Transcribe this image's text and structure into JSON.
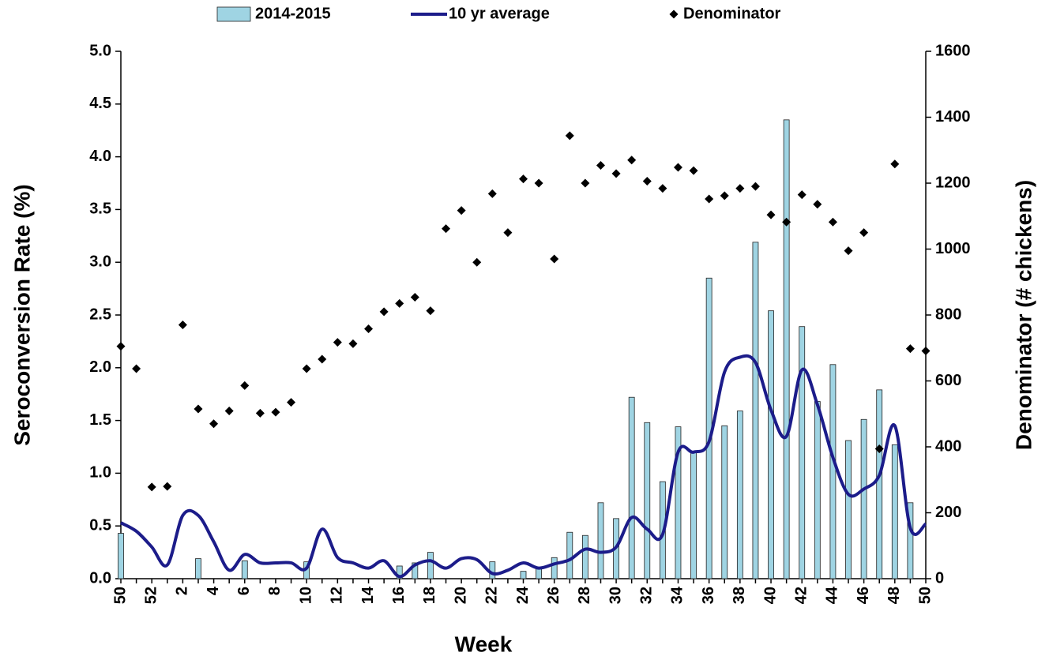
{
  "chart_data": {
    "type": "bar-line-scatter",
    "x_label": "Week",
    "y_label": "Seroconversion Rate (%)",
    "y2_label": "Denominator (# chickens)",
    "categories": [
      "50",
      null,
      "52",
      null,
      "2",
      null,
      "4",
      null,
      "6",
      null,
      "8",
      null,
      "10",
      null,
      "12",
      null,
      "14",
      null,
      "16",
      null,
      "18",
      null,
      "20",
      null,
      "22",
      null,
      "24",
      null,
      "26",
      null,
      "28",
      null,
      "30",
      null,
      "32",
      null,
      "34",
      null,
      "36",
      null,
      "38",
      null,
      "40",
      null,
      "42",
      null,
      "44",
      null,
      "46",
      null,
      "48",
      null,
      "50"
    ],
    "series": [
      {
        "name": "2014-2015",
        "kind": "bar",
        "color": "#9fd4e3",
        "values": [
          0.43,
          0,
          0,
          0,
          0,
          0.19,
          0,
          0,
          0.17,
          0,
          0,
          0,
          0.16,
          0,
          0,
          0,
          0,
          0,
          0.12,
          0.15,
          0.25,
          0,
          0,
          0,
          0.16,
          0,
          0.07,
          0.1,
          0.2,
          0.44,
          0.41,
          0.72,
          0.57,
          1.72,
          1.48,
          0.92,
          1.44,
          1.2,
          2.85,
          1.45,
          1.59,
          3.19,
          2.54,
          4.35,
          2.39,
          1.68,
          2.03,
          1.31,
          1.51,
          1.79,
          1.27,
          0.72,
          0
        ]
      },
      {
        "name": "10 yr average",
        "kind": "line",
        "color": "#1c1c8a",
        "values": [
          0.53,
          0.45,
          0.3,
          0.13,
          0.6,
          0.6,
          0.35,
          0.08,
          0.23,
          0.15,
          0.15,
          0.15,
          0.1,
          0.47,
          0.2,
          0.15,
          0.1,
          0.17,
          0.02,
          0.13,
          0.17,
          0.1,
          0.19,
          0.18,
          0.05,
          0.08,
          0.15,
          0.1,
          0.14,
          0.18,
          0.28,
          0.25,
          0.3,
          0.58,
          0.47,
          0.42,
          1.2,
          1.2,
          1.3,
          1.96,
          2.1,
          2.05,
          1.6,
          1.35,
          1.98,
          1.65,
          1.15,
          0.8,
          0.85,
          0.98,
          1.45,
          0.48,
          0.52
        ]
      },
      {
        "name": "Denominator",
        "kind": "scatter",
        "axis": "y2",
        "color": "#000000",
        "values": [
          705,
          637,
          278,
          280,
          770,
          515,
          470,
          509,
          586,
          502,
          505,
          535,
          637,
          666,
          717,
          713,
          758,
          810,
          835,
          854,
          813,
          1062,
          1117,
          960,
          1168,
          1050,
          1213,
          1200,
          970,
          1344,
          1200,
          1254,
          1229,
          1270,
          1206,
          1184,
          1248,
          1238,
          1152,
          1162,
          1184,
          1190,
          1104,
          1082,
          1165,
          1136,
          1082,
          995,
          1050,
          394,
          1258,
          698,
          691
        ]
      }
    ],
    "ylim": [
      0,
      5
    ],
    "yticks": [
      {
        "value": 0,
        "label": "0.0"
      },
      {
        "value": 0.5,
        "label": "0.5"
      },
      {
        "value": 1,
        "label": "1.0"
      },
      {
        "value": 1.5,
        "label": "1.5"
      },
      {
        "value": 2,
        "label": "2.0"
      },
      {
        "value": 2.5,
        "label": "2.5"
      },
      {
        "value": 3,
        "label": "3.0"
      },
      {
        "value": 3.5,
        "label": "3.5"
      },
      {
        "value": 4,
        "label": "4.0"
      },
      {
        "value": 4.5,
        "label": "4.5"
      },
      {
        "value": 5,
        "label": "5.0"
      }
    ],
    "y2lim": [
      0,
      1600
    ],
    "y2ticks": [
      0,
      200,
      400,
      600,
      800,
      1000,
      1200,
      1400,
      1600
    ],
    "legend": "top"
  }
}
